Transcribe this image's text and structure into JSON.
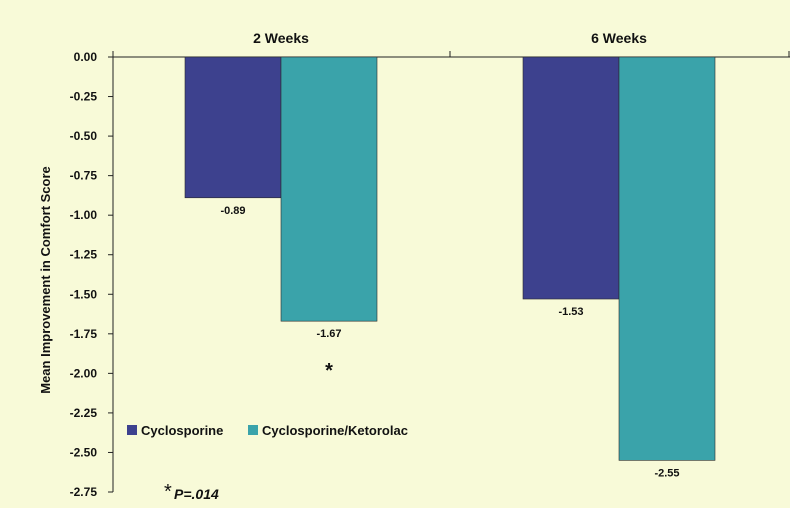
{
  "chart_data": {
    "type": "bar",
    "categories": [
      "2 Weeks",
      "6 Weeks"
    ],
    "series": [
      {
        "name": "Cyclosporine",
        "values": [
          -0.89,
          -1.53
        ],
        "value_labels": [
          "-0.89",
          "-1.53"
        ],
        "color": "#3d418e"
      },
      {
        "name": "Cyclosporine/Ketorolac",
        "values": [
          -1.67,
          -2.55
        ],
        "value_labels": [
          "-1.67",
          "-2.55"
        ],
        "color": "#3aa3aa"
      }
    ],
    "title": "",
    "xlabel": "",
    "ylabel": "Mean Improvement in Comfort Score",
    "ylim": [
      -2.75,
      0.0
    ],
    "yticks": [
      0.0,
      -0.25,
      -0.5,
      -0.75,
      -1.0,
      -1.25,
      -1.5,
      -1.75,
      -2.0,
      -2.25,
      -2.5,
      -2.75
    ],
    "ytick_labels": [
      "0.00",
      "-0.25",
      "-0.50",
      "-0.75",
      "-1.00",
      "-1.25",
      "-1.50",
      "-1.75",
      "-2.00",
      "-2.25",
      "-2.50",
      "-2.75"
    ],
    "legend_position": "lower-left",
    "grid": false,
    "significance_marker": "*",
    "footnote": {
      "symbol": "*",
      "text": "P=.014"
    },
    "background_color": "#f8fad8"
  }
}
